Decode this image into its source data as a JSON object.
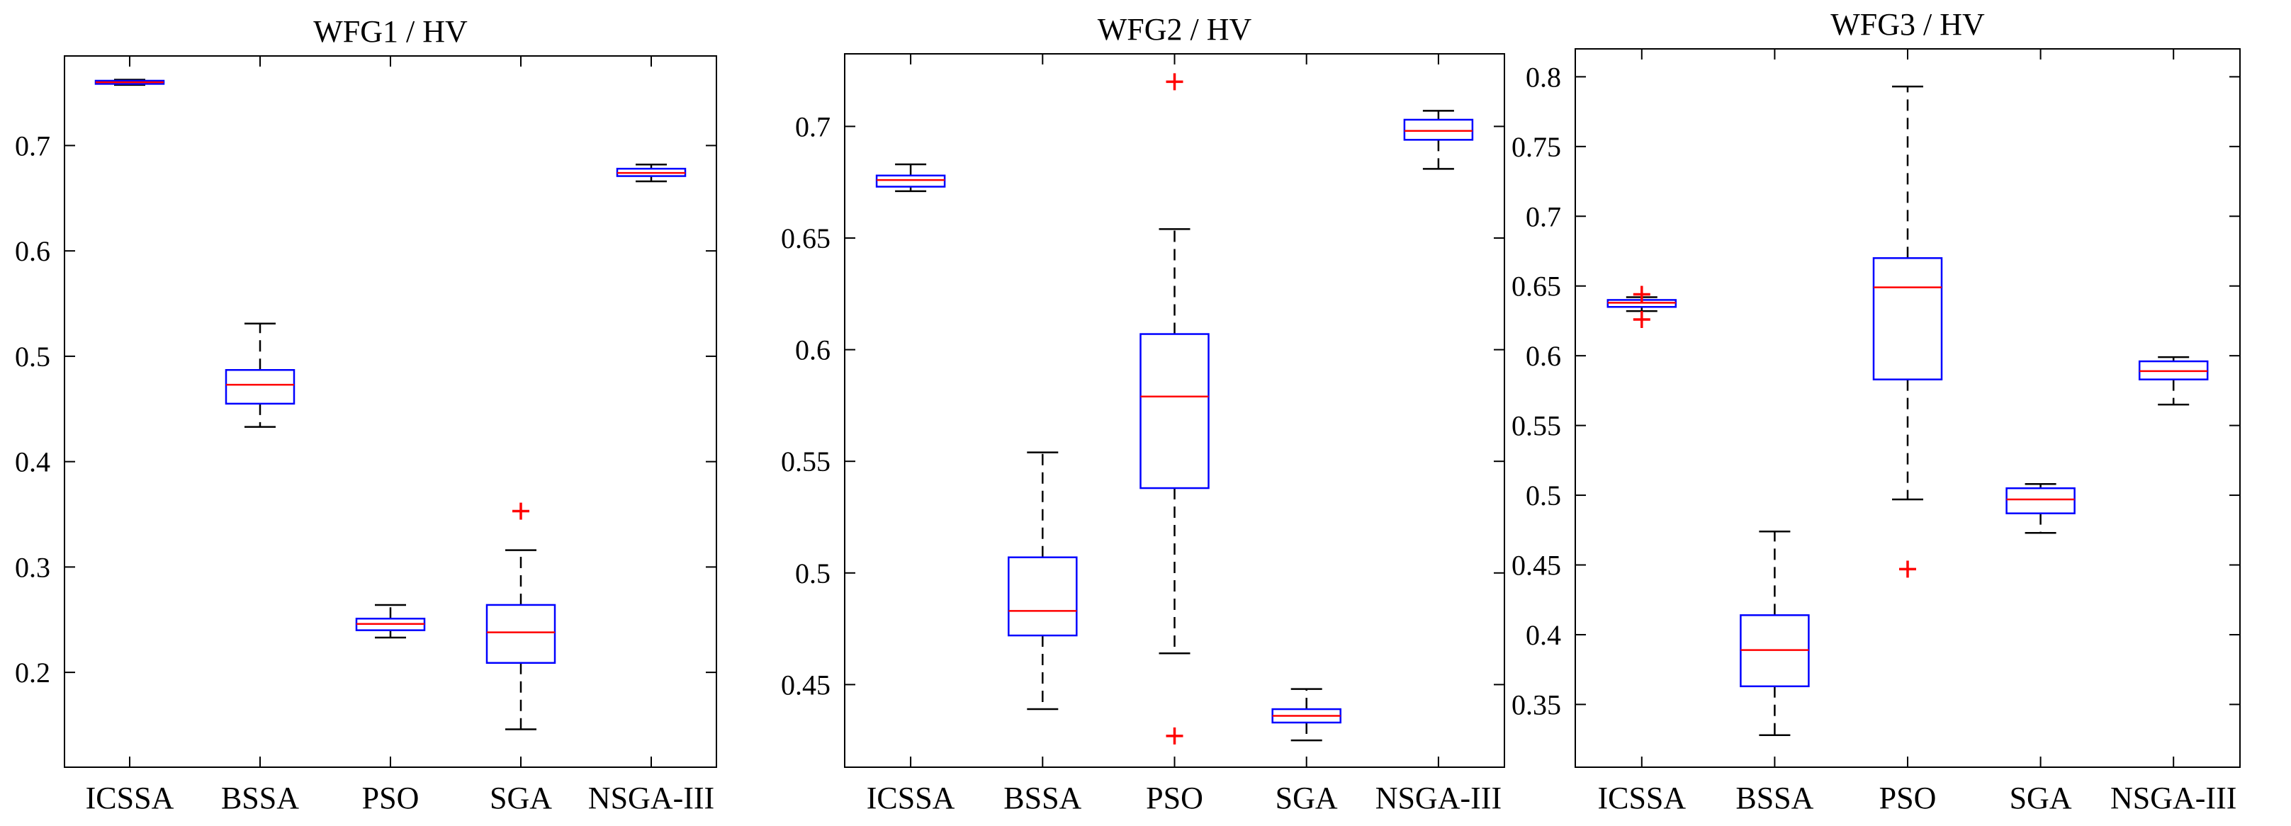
{
  "colors": {
    "box": "#0000ff",
    "median": "#ff0000",
    "whisker": "#000000",
    "outlier": "#ff0000",
    "axes": "#000000"
  },
  "chart_data": [
    {
      "type": "box",
      "title": "WFG1 / HV",
      "categories": [
        "ICSSA",
        "BSSA",
        "PSO",
        "SGA",
        "NSGA-III"
      ],
      "ylim": [
        0.11,
        0.785
      ],
      "yticks": [
        0.2,
        0.3,
        0.4,
        0.5,
        0.6,
        0.7
      ],
      "ytick_labels": [
        "0.2",
        "0.3",
        "0.4",
        "0.5",
        "0.6",
        "0.7"
      ],
      "boxes": [
        {
          "q1": 0.7585,
          "median": 0.76,
          "q3": 0.7615,
          "whisker_low": 0.7575,
          "whisker_high": 0.7625,
          "outliers": []
        },
        {
          "q1": 0.455,
          "median": 0.473,
          "q3": 0.487,
          "whisker_low": 0.433,
          "whisker_high": 0.531,
          "outliers": []
        },
        {
          "q1": 0.24,
          "median": 0.246,
          "q3": 0.251,
          "whisker_low": 0.233,
          "whisker_high": 0.264,
          "outliers": []
        },
        {
          "q1": 0.209,
          "median": 0.238,
          "q3": 0.264,
          "whisker_low": 0.146,
          "whisker_high": 0.316,
          "outliers": [
            0.353
          ]
        },
        {
          "q1": 0.671,
          "median": 0.674,
          "q3": 0.678,
          "whisker_low": 0.666,
          "whisker_high": 0.682,
          "outliers": []
        }
      ]
    },
    {
      "type": "box",
      "title": "WFG2 / HV",
      "categories": [
        "ICSSA",
        "BSSA",
        "PSO",
        "SGA",
        "NSGA-III"
      ],
      "ylim": [
        0.413,
        0.7325
      ],
      "yticks": [
        0.45,
        0.5,
        0.55,
        0.6,
        0.65,
        0.7
      ],
      "ytick_labels": [
        "0.45",
        "0.5",
        "0.55",
        "0.6",
        "0.65",
        "0.7"
      ],
      "boxes": [
        {
          "q1": 0.673,
          "median": 0.676,
          "q3": 0.678,
          "whisker_low": 0.671,
          "whisker_high": 0.683,
          "outliers": []
        },
        {
          "q1": 0.472,
          "median": 0.483,
          "q3": 0.507,
          "whisker_low": 0.439,
          "whisker_high": 0.554,
          "outliers": []
        },
        {
          "q1": 0.538,
          "median": 0.579,
          "q3": 0.607,
          "whisker_low": 0.464,
          "whisker_high": 0.654,
          "outliers": [
            0.72,
            0.427
          ]
        },
        {
          "q1": 0.433,
          "median": 0.436,
          "q3": 0.439,
          "whisker_low": 0.425,
          "whisker_high": 0.448,
          "outliers": []
        },
        {
          "q1": 0.694,
          "median": 0.698,
          "q3": 0.703,
          "whisker_low": 0.681,
          "whisker_high": 0.707,
          "outliers": []
        }
      ]
    },
    {
      "type": "box",
      "title": "WFG3 / HV",
      "categories": [
        "ICSSA",
        "BSSA",
        "PSO",
        "SGA",
        "NSGA-III"
      ],
      "ylim": [
        0.305,
        0.82
      ],
      "yticks": [
        0.35,
        0.4,
        0.45,
        0.5,
        0.55,
        0.6,
        0.65,
        0.7,
        0.75,
        0.8
      ],
      "ytick_labels": [
        "0.35",
        "0.4",
        "0.45",
        "0.5",
        "0.55",
        "0.6",
        "0.65",
        "0.7",
        "0.75",
        "0.8"
      ],
      "boxes": [
        {
          "q1": 0.635,
          "median": 0.638,
          "q3": 0.64,
          "whisker_low": 0.632,
          "whisker_high": 0.642,
          "outliers": [
            0.644,
            0.626
          ]
        },
        {
          "q1": 0.363,
          "median": 0.389,
          "q3": 0.414,
          "whisker_low": 0.328,
          "whisker_high": 0.474,
          "outliers": []
        },
        {
          "q1": 0.583,
          "median": 0.649,
          "q3": 0.67,
          "whisker_low": 0.497,
          "whisker_high": 0.793,
          "outliers": [
            0.447
          ]
        },
        {
          "q1": 0.487,
          "median": 0.497,
          "q3": 0.505,
          "whisker_low": 0.473,
          "whisker_high": 0.508,
          "outliers": []
        },
        {
          "q1": 0.583,
          "median": 0.589,
          "q3": 0.596,
          "whisker_low": 0.565,
          "whisker_high": 0.599,
          "outliers": []
        }
      ]
    }
  ]
}
